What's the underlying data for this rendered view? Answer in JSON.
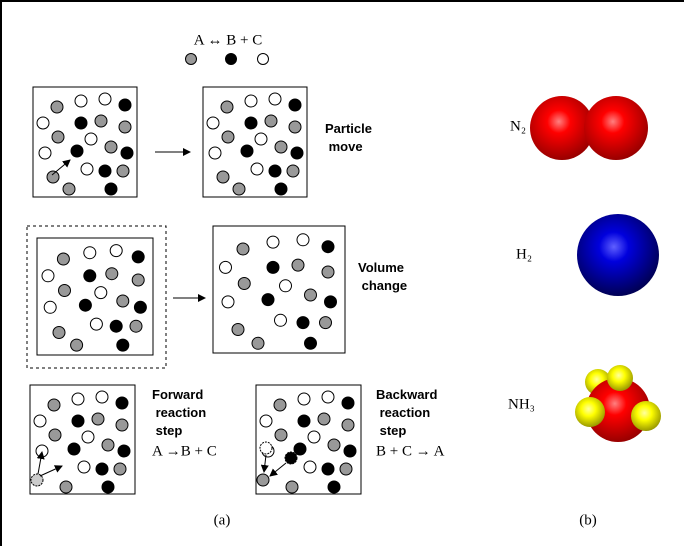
{
  "header": {
    "reaction": "A ↔ B + C"
  },
  "panels": {
    "particle_move": "Particle move",
    "volume_change": "Volume change",
    "forward": {
      "title": "Forward reaction step",
      "equation": "A →B + C"
    },
    "backward": {
      "title": "Backward reaction step",
      "equation": "B + C → A"
    }
  },
  "captions": {
    "a": "(a)",
    "b": "(b)"
  },
  "molecules": [
    {
      "label": "N₂"
    },
    {
      "label": "H₂"
    },
    {
      "label": "NH₃"
    }
  ]
}
